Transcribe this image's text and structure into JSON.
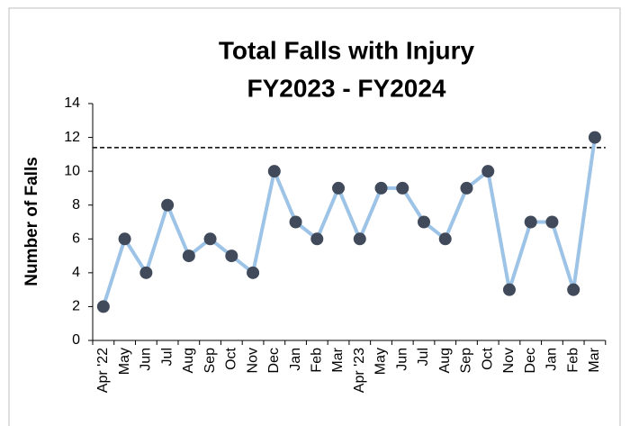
{
  "chart_data": {
    "type": "line",
    "title": "Total Falls with Injury",
    "subtitle": "FY2023 - FY2024",
    "ylabel": "Number of Falls",
    "categories": [
      "Apr '22",
      "May",
      "Jun",
      "Jul",
      "Aug",
      "Sep",
      "Oct",
      "Nov",
      "Dec",
      "Jan",
      "Feb",
      "Mar",
      "Apr '23",
      "May",
      "Jun",
      "Jul",
      "Aug",
      "Sep",
      "Oct",
      "Nov",
      "Dec",
      "Jan",
      "Feb",
      "Mar"
    ],
    "values": [
      2,
      6,
      4,
      8,
      5,
      6,
      5,
      4,
      10,
      7,
      6,
      9,
      6,
      9,
      9,
      7,
      6,
      9,
      10,
      3,
      7,
      7,
      3,
      12
    ],
    "color": "#9dc3e6",
    "marker_color": "#404a5a",
    "reference_line": 11.4,
    "ylim": [
      0,
      14
    ],
    "yticks": [
      0,
      2,
      4,
      6,
      8,
      10,
      12,
      14
    ]
  }
}
